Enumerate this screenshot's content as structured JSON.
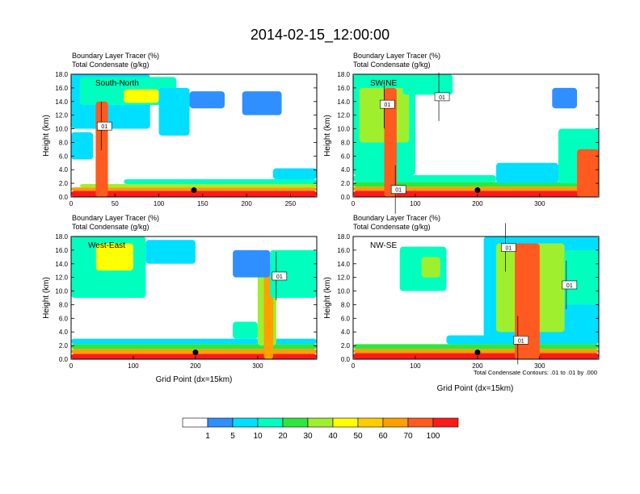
{
  "figure": {
    "title": "2014-02-15_12:00:00",
    "contour_note": "Total Condensate Contours: .01 to .01 by .000",
    "xlabel": "Grid Point (dx=15km)"
  },
  "colors": {
    "background": "#ffffff",
    "frame": "#000000",
    "contour": "#000000"
  },
  "colorbar": {
    "labels": [
      "1",
      "5",
      "10",
      "20",
      "30",
      "40",
      "50",
      "60",
      "70",
      "100"
    ],
    "colors": [
      "#ffffff",
      "#2f8fff",
      "#00dfff",
      "#00ffbf",
      "#2fe640",
      "#9fef2f",
      "#ffff00",
      "#ffcc00",
      "#ff9f00",
      "#ff5a1f",
      "#ff1a1a"
    ]
  },
  "chart_data": [
    {
      "type": "heatmap",
      "panel": "south-north",
      "title_line1": "Boundary Layer Tracer   (%)",
      "title_line2": "Total Condensate   (g/kg)",
      "label": "South-North",
      "ylabel": "Height (km)",
      "xlabel": "",
      "xlim": [
        0,
        280
      ],
      "ylim": [
        0,
        18
      ],
      "xticks": [
        0,
        50,
        100,
        150,
        200,
        250
      ],
      "yticks": [
        "0.0",
        "2.0",
        "4.0",
        "6.0",
        "8.0",
        "10.0",
        "12.0",
        "14.0",
        "16.0",
        "18.0"
      ],
      "contour_labels": [
        {
          "text": "01",
          "x": 38,
          "y": 10.4
        }
      ],
      "marker": {
        "x": 140,
        "y": 1.0
      },
      "blobs": [
        {
          "x0": 0,
          "x1": 280,
          "y0": 0,
          "y1": 0.9,
          "level": 10
        },
        {
          "x0": 0,
          "x1": 280,
          "y0": 0.9,
          "y1": 1.4,
          "level": 8
        },
        {
          "x0": 10,
          "x1": 280,
          "y0": 1.4,
          "y1": 1.9,
          "level": 5
        },
        {
          "x0": 60,
          "x1": 280,
          "y0": 1.9,
          "y1": 2.6,
          "level": 3
        },
        {
          "x0": 230,
          "x1": 280,
          "y0": 2.6,
          "y1": 4.2,
          "level": 2
        },
        {
          "x0": 0,
          "x1": 90,
          "y0": 10.0,
          "y1": 18.0,
          "level": 2
        },
        {
          "x0": 10,
          "x1": 120,
          "y0": 13.5,
          "y1": 17.6,
          "level": 3
        },
        {
          "x0": 60,
          "x1": 100,
          "y0": 13.8,
          "y1": 15.8,
          "level": 6
        },
        {
          "x0": 0,
          "x1": 25,
          "y0": 5.5,
          "y1": 9.5,
          "level": 2
        },
        {
          "x0": 28,
          "x1": 42,
          "y0": 0,
          "y1": 14.0,
          "level": 9
        },
        {
          "x0": 100,
          "x1": 135,
          "y0": 9.0,
          "y1": 16.0,
          "level": 2
        },
        {
          "x0": 195,
          "x1": 240,
          "y0": 12.0,
          "y1": 15.5,
          "level": 1
        },
        {
          "x0": 135,
          "x1": 175,
          "y0": 13.0,
          "y1": 15.5,
          "level": 1
        }
      ]
    },
    {
      "type": "heatmap",
      "panel": "southwest-northeast",
      "title_line1": "Boundary Layer Tracer   (%)",
      "title_line2": "Total Condensate   (g/kg)",
      "label": "SW-NE",
      "ylabel": "Height (km)",
      "xlabel": "",
      "xlim": [
        0,
        395
      ],
      "ylim": [
        0,
        18
      ],
      "xticks": [
        0,
        100,
        200,
        300
      ],
      "yticks": [
        "0.0",
        "2.0",
        "4.0",
        "6.0",
        "8.0",
        "10.0",
        "12.0",
        "14.0",
        "16.0",
        "18.0"
      ],
      "contour_labels": [
        {
          "text": "01",
          "x": 55,
          "y": 13.6
        },
        {
          "text": "01",
          "x": 143,
          "y": 14.7
        },
        {
          "text": "01",
          "x": 73,
          "y": 1.1
        }
      ],
      "marker": {
        "x": 200,
        "y": 1.0
      },
      "blobs": [
        {
          "x0": 0,
          "x1": 395,
          "y0": 0,
          "y1": 0.9,
          "level": 10
        },
        {
          "x0": 0,
          "x1": 395,
          "y0": 0.9,
          "y1": 1.5,
          "level": 8
        },
        {
          "x0": 0,
          "x1": 395,
          "y0": 1.5,
          "y1": 2.2,
          "level": 4
        },
        {
          "x0": 0,
          "x1": 230,
          "y0": 2.2,
          "y1": 3.2,
          "level": 3
        },
        {
          "x0": 0,
          "x1": 100,
          "y0": 3.2,
          "y1": 18.0,
          "level": 3
        },
        {
          "x0": 10,
          "x1": 90,
          "y0": 8.0,
          "y1": 16.0,
          "level": 5
        },
        {
          "x0": 50,
          "x1": 70,
          "y0": 0,
          "y1": 16.0,
          "level": 9
        },
        {
          "x0": 80,
          "x1": 160,
          "y0": 15.0,
          "y1": 18.0,
          "level": 3
        },
        {
          "x0": 230,
          "x1": 330,
          "y0": 2.0,
          "y1": 5.0,
          "level": 2
        },
        {
          "x0": 330,
          "x1": 395,
          "y0": 2.0,
          "y1": 10.0,
          "level": 3
        },
        {
          "x0": 360,
          "x1": 395,
          "y0": 0,
          "y1": 7.0,
          "level": 9
        },
        {
          "x0": 320,
          "x1": 360,
          "y0": 13.0,
          "y1": 16.0,
          "level": 1
        }
      ]
    },
    {
      "type": "heatmap",
      "panel": "west-east",
      "title_line1": "Boundary Layer Tracer   (%)",
      "title_line2": "Total Condensate   (g/kg)",
      "label": "West-East",
      "ylabel": "Height (km)",
      "xlabel": "Grid Point (dx=15km)",
      "xlim": [
        0,
        395
      ],
      "ylim": [
        0,
        18
      ],
      "xticks": [
        0,
        100,
        200,
        300
      ],
      "yticks": [
        "0.0",
        "2.0",
        "4.0",
        "6.0",
        "8.0",
        "10.0",
        "12.0",
        "14.0",
        "16.0",
        "18.0"
      ],
      "contour_labels": [
        {
          "text": "01",
          "x": 335,
          "y": 12.2
        }
      ],
      "marker": {
        "x": 200,
        "y": 1.0
      },
      "blobs": [
        {
          "x0": 0,
          "x1": 395,
          "y0": 0,
          "y1": 0.8,
          "level": 10
        },
        {
          "x0": 0,
          "x1": 395,
          "y0": 0.8,
          "y1": 1.5,
          "level": 8
        },
        {
          "x0": 0,
          "x1": 395,
          "y0": 1.5,
          "y1": 2.2,
          "level": 4
        },
        {
          "x0": 0,
          "x1": 395,
          "y0": 2.2,
          "y1": 3.0,
          "level": 2
        },
        {
          "x0": 0,
          "x1": 120,
          "y0": 9.0,
          "y1": 18.0,
          "level": 3
        },
        {
          "x0": 40,
          "x1": 100,
          "y0": 13.0,
          "y1": 17.0,
          "level": 6
        },
        {
          "x0": 120,
          "x1": 200,
          "y0": 14.0,
          "y1": 17.5,
          "level": 2
        },
        {
          "x0": 260,
          "x1": 300,
          "y0": 3.0,
          "y1": 5.5,
          "level": 3
        },
        {
          "x0": 300,
          "x1": 330,
          "y0": 2.0,
          "y1": 14.0,
          "level": 5
        },
        {
          "x0": 310,
          "x1": 325,
          "y0": 0,
          "y1": 14.0,
          "level": 8
        },
        {
          "x0": 320,
          "x1": 395,
          "y0": 9.0,
          "y1": 16.0,
          "level": 3
        },
        {
          "x0": 260,
          "x1": 320,
          "y0": 12.0,
          "y1": 16.0,
          "level": 1
        }
      ]
    },
    {
      "type": "heatmap",
      "panel": "northwest-southeast",
      "title_line1": "Boundary Layer Tracer   (%)",
      "title_line2": "Total Condensate   (g/kg)",
      "label": "NW-SE",
      "ylabel": "Height (km)",
      "xlabel": "Grid Point (dx=15km)",
      "xlim": [
        0,
        395
      ],
      "ylim": [
        0,
        18
      ],
      "xticks": [
        0,
        100,
        200,
        300
      ],
      "yticks": [
        "0.0",
        "2.0",
        "4.0",
        "6.0",
        "8.0",
        "10.0",
        "12.0",
        "14.0",
        "16.0",
        "18.0"
      ],
      "contour_labels": [
        {
          "text": "01",
          "x": 250,
          "y": 16.4
        },
        {
          "text": "01",
          "x": 348,
          "y": 10.9
        },
        {
          "text": "01",
          "x": 270,
          "y": 2.8
        }
      ],
      "marker": {
        "x": 200,
        "y": 1.0
      },
      "blobs": [
        {
          "x0": 0,
          "x1": 395,
          "y0": 0,
          "y1": 0.9,
          "level": 10
        },
        {
          "x0": 0,
          "x1": 395,
          "y0": 0.9,
          "y1": 1.5,
          "level": 8
        },
        {
          "x0": 0,
          "x1": 395,
          "y0": 1.5,
          "y1": 2.2,
          "level": 4
        },
        {
          "x0": 150,
          "x1": 395,
          "y0": 2.2,
          "y1": 3.5,
          "level": 2
        },
        {
          "x0": 210,
          "x1": 395,
          "y0": 3.0,
          "y1": 18.0,
          "level": 2
        },
        {
          "x0": 230,
          "x1": 340,
          "y0": 4.0,
          "y1": 17.0,
          "level": 5
        },
        {
          "x0": 260,
          "x1": 300,
          "y0": 0,
          "y1": 17.0,
          "level": 9
        },
        {
          "x0": 75,
          "x1": 150,
          "y0": 10.0,
          "y1": 16.5,
          "level": 3
        },
        {
          "x0": 110,
          "x1": 140,
          "y0": 12.0,
          "y1": 15.0,
          "level": 5
        },
        {
          "x0": 340,
          "x1": 395,
          "y0": 8.0,
          "y1": 16.0,
          "level": 3
        }
      ]
    }
  ]
}
